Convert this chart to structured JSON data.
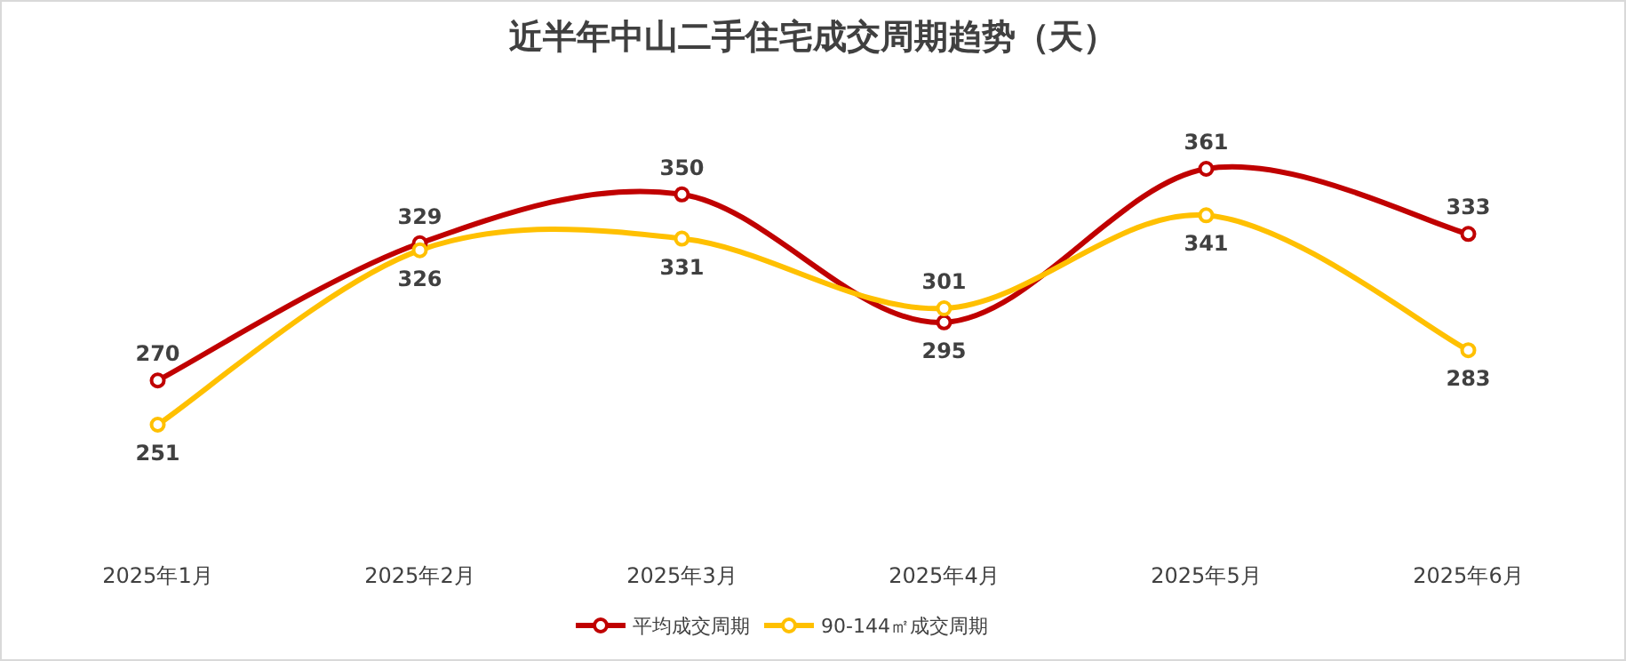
{
  "chart_data": {
    "type": "line",
    "title": "近半年中山二手住宅成交周期趋势（天）",
    "categories": [
      "2025年1月",
      "2025年2月",
      "2025年3月",
      "2025年4月",
      "2025年5月",
      "2025年6月"
    ],
    "series": [
      {
        "name": "平均成交周期",
        "color": "#c00000",
        "values": [
          270,
          329,
          350,
          295,
          361,
          333
        ]
      },
      {
        "name": "90-144㎡成交周期",
        "color": "#ffc000",
        "values": [
          251,
          326,
          331,
          301,
          341,
          283
        ]
      }
    ],
    "data_labels": true,
    "marker": "circle",
    "line_style": "solid",
    "legend": "bottom"
  }
}
